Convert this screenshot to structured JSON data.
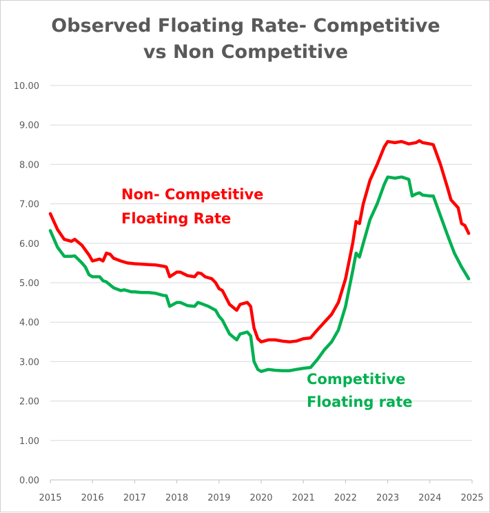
{
  "chart_data": {
    "type": "line",
    "title_line1": "Observed Floating Rate- Competitive",
    "title_line2": "vs Non Competitive",
    "xlabel": "",
    "ylabel": "",
    "xlim": [
      2015,
      2025
    ],
    "ylim": [
      0,
      10
    ],
    "y_ticks": [
      "0.00",
      "1.00",
      "2.00",
      "3.00",
      "4.00",
      "5.00",
      "6.00",
      "7.00",
      "8.00",
      "9.00",
      "10.00"
    ],
    "x_ticks": [
      "2015",
      "2016",
      "2017",
      "2018",
      "2019",
      "2020",
      "2021",
      "2022",
      "2023",
      "2024",
      "2025"
    ],
    "grid": true,
    "legend": "none",
    "series": [
      {
        "name": "Non- Competitive Floating Rate",
        "annotation_line1": "Non- Competitive",
        "annotation_line2": "Floating Rate",
        "color": "#ff0000",
        "points": [
          [
            2015.0,
            6.75
          ],
          [
            2015.17,
            6.35
          ],
          [
            2015.33,
            6.1
          ],
          [
            2015.5,
            6.05
          ],
          [
            2015.58,
            6.1
          ],
          [
            2015.75,
            5.95
          ],
          [
            2015.92,
            5.7
          ],
          [
            2016.0,
            5.55
          ],
          [
            2016.17,
            5.6
          ],
          [
            2016.25,
            5.55
          ],
          [
            2016.33,
            5.75
          ],
          [
            2016.42,
            5.72
          ],
          [
            2016.5,
            5.62
          ],
          [
            2016.67,
            5.55
          ],
          [
            2016.83,
            5.5
          ],
          [
            2017.0,
            5.48
          ],
          [
            2017.17,
            5.47
          ],
          [
            2017.33,
            5.46
          ],
          [
            2017.5,
            5.45
          ],
          [
            2017.67,
            5.42
          ],
          [
            2017.75,
            5.4
          ],
          [
            2017.83,
            5.15
          ],
          [
            2018.0,
            5.27
          ],
          [
            2018.08,
            5.27
          ],
          [
            2018.25,
            5.18
          ],
          [
            2018.42,
            5.15
          ],
          [
            2018.5,
            5.25
          ],
          [
            2018.58,
            5.23
          ],
          [
            2018.67,
            5.15
          ],
          [
            2018.83,
            5.1
          ],
          [
            2018.92,
            5.0
          ],
          [
            2019.0,
            4.85
          ],
          [
            2019.08,
            4.8
          ],
          [
            2019.25,
            4.45
          ],
          [
            2019.42,
            4.3
          ],
          [
            2019.5,
            4.45
          ],
          [
            2019.67,
            4.5
          ],
          [
            2019.75,
            4.4
          ],
          [
            2019.83,
            3.85
          ],
          [
            2019.92,
            3.58
          ],
          [
            2020.0,
            3.5
          ],
          [
            2020.17,
            3.55
          ],
          [
            2020.33,
            3.55
          ],
          [
            2020.5,
            3.52
          ],
          [
            2020.67,
            3.5
          ],
          [
            2020.83,
            3.52
          ],
          [
            2021.0,
            3.58
          ],
          [
            2021.17,
            3.6
          ],
          [
            2021.33,
            3.8
          ],
          [
            2021.5,
            4.0
          ],
          [
            2021.67,
            4.2
          ],
          [
            2021.83,
            4.5
          ],
          [
            2022.0,
            5.1
          ],
          [
            2022.17,
            6.0
          ],
          [
            2022.25,
            6.55
          ],
          [
            2022.33,
            6.5
          ],
          [
            2022.42,
            7.0
          ],
          [
            2022.58,
            7.6
          ],
          [
            2022.75,
            8.0
          ],
          [
            2022.92,
            8.45
          ],
          [
            2023.0,
            8.58
          ],
          [
            2023.17,
            8.55
          ],
          [
            2023.33,
            8.58
          ],
          [
            2023.5,
            8.52
          ],
          [
            2023.67,
            8.55
          ],
          [
            2023.75,
            8.6
          ],
          [
            2023.83,
            8.55
          ],
          [
            2024.0,
            8.52
          ],
          [
            2024.08,
            8.5
          ],
          [
            2024.25,
            8.0
          ],
          [
            2024.42,
            7.4
          ],
          [
            2024.5,
            7.1
          ],
          [
            2024.67,
            6.9
          ],
          [
            2024.75,
            6.5
          ],
          [
            2024.83,
            6.45
          ],
          [
            2024.92,
            6.25
          ]
        ]
      },
      {
        "name": "Competitive Floating rate",
        "annotation_line1": "Competitive",
        "annotation_line2": "Floating rate",
        "color": "#00b050",
        "points": [
          [
            2015.0,
            6.32
          ],
          [
            2015.17,
            5.9
          ],
          [
            2015.33,
            5.67
          ],
          [
            2015.5,
            5.67
          ],
          [
            2015.58,
            5.68
          ],
          [
            2015.75,
            5.5
          ],
          [
            2015.83,
            5.4
          ],
          [
            2015.92,
            5.2
          ],
          [
            2016.0,
            5.15
          ],
          [
            2016.17,
            5.15
          ],
          [
            2016.25,
            5.05
          ],
          [
            2016.33,
            5.02
          ],
          [
            2016.5,
            4.87
          ],
          [
            2016.67,
            4.8
          ],
          [
            2016.75,
            4.82
          ],
          [
            2016.92,
            4.77
          ],
          [
            2017.0,
            4.77
          ],
          [
            2017.17,
            4.75
          ],
          [
            2017.33,
            4.75
          ],
          [
            2017.5,
            4.73
          ],
          [
            2017.67,
            4.68
          ],
          [
            2017.75,
            4.67
          ],
          [
            2017.83,
            4.4
          ],
          [
            2018.0,
            4.5
          ],
          [
            2018.08,
            4.5
          ],
          [
            2018.25,
            4.42
          ],
          [
            2018.42,
            4.4
          ],
          [
            2018.5,
            4.5
          ],
          [
            2018.58,
            4.47
          ],
          [
            2018.75,
            4.4
          ],
          [
            2018.92,
            4.3
          ],
          [
            2019.0,
            4.15
          ],
          [
            2019.08,
            4.05
          ],
          [
            2019.25,
            3.7
          ],
          [
            2019.42,
            3.55
          ],
          [
            2019.5,
            3.7
          ],
          [
            2019.67,
            3.75
          ],
          [
            2019.75,
            3.65
          ],
          [
            2019.83,
            3.0
          ],
          [
            2019.92,
            2.8
          ],
          [
            2020.0,
            2.75
          ],
          [
            2020.17,
            2.8
          ],
          [
            2020.33,
            2.78
          ],
          [
            2020.5,
            2.77
          ],
          [
            2020.67,
            2.77
          ],
          [
            2020.83,
            2.8
          ],
          [
            2021.0,
            2.83
          ],
          [
            2021.17,
            2.85
          ],
          [
            2021.33,
            3.05
          ],
          [
            2021.5,
            3.3
          ],
          [
            2021.67,
            3.5
          ],
          [
            2021.83,
            3.8
          ],
          [
            2022.0,
            4.4
          ],
          [
            2022.17,
            5.3
          ],
          [
            2022.25,
            5.75
          ],
          [
            2022.33,
            5.65
          ],
          [
            2022.42,
            6.0
          ],
          [
            2022.58,
            6.6
          ],
          [
            2022.75,
            7.0
          ],
          [
            2022.92,
            7.5
          ],
          [
            2023.0,
            7.68
          ],
          [
            2023.17,
            7.65
          ],
          [
            2023.33,
            7.68
          ],
          [
            2023.5,
            7.62
          ],
          [
            2023.58,
            7.2
          ],
          [
            2023.67,
            7.25
          ],
          [
            2023.75,
            7.28
          ],
          [
            2023.83,
            7.22
          ],
          [
            2024.0,
            7.2
          ],
          [
            2024.08,
            7.2
          ],
          [
            2024.25,
            6.7
          ],
          [
            2024.42,
            6.2
          ],
          [
            2024.58,
            5.75
          ],
          [
            2024.75,
            5.4
          ],
          [
            2024.92,
            5.1
          ]
        ]
      }
    ]
  }
}
